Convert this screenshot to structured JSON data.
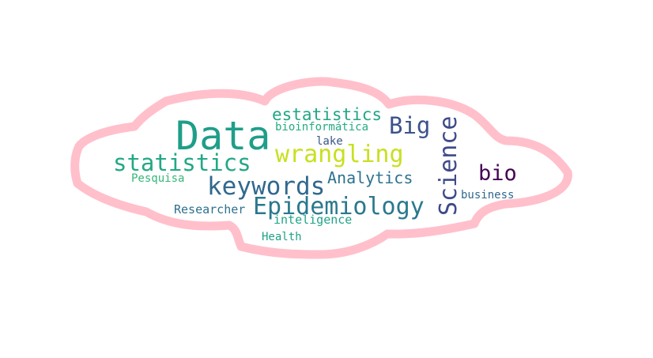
{
  "outline_color": "#ffc0cb",
  "words": [
    {
      "text": "Data",
      "color": "#1f9e89"
    },
    {
      "text": "statistics",
      "color": "#22a884"
    },
    {
      "text": "keywords",
      "color": "#31688e"
    },
    {
      "text": "Epidemiology",
      "color": "#2a788e"
    },
    {
      "text": "wrangling",
      "color": "#c8e020"
    },
    {
      "text": "Big",
      "color": "#3b528b"
    },
    {
      "text": "Science",
      "color": "#3e4a89"
    },
    {
      "text": "bio",
      "color": "#440154"
    },
    {
      "text": "estatistics",
      "color": "#21a685"
    },
    {
      "text": "bioinformática",
      "color": "#25ab82"
    },
    {
      "text": "lake",
      "color": "#39568c"
    },
    {
      "text": "Analytics",
      "color": "#2c728e"
    },
    {
      "text": "Pesquisa",
      "color": "#35b779"
    },
    {
      "text": "Researcher",
      "color": "#2d708e"
    },
    {
      "text": "inteligence",
      "color": "#20a486"
    },
    {
      "text": "business",
      "color": "#31688e"
    },
    {
      "text": "Health",
      "color": "#1fa088"
    }
  ]
}
